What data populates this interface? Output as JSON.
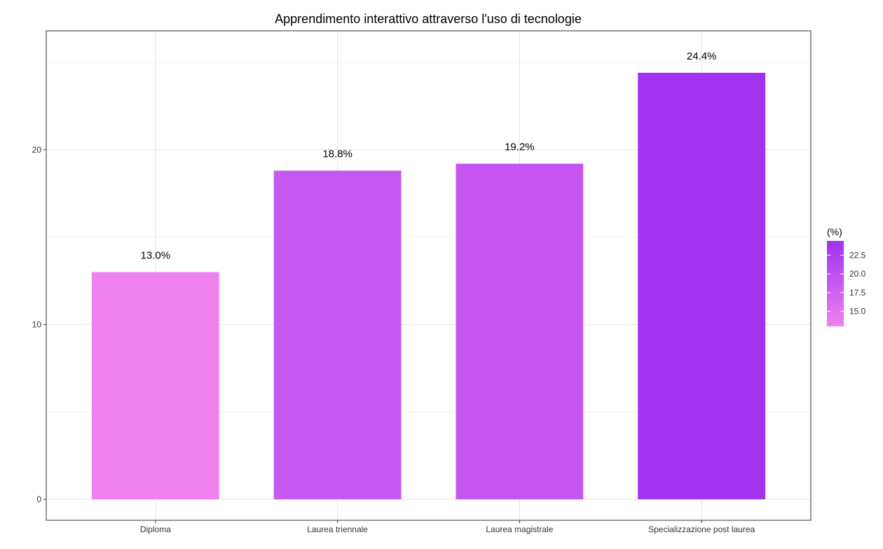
{
  "chart_data": {
    "type": "bar",
    "title": "Apprendimento interattivo attraverso l'uso di tecnologie",
    "xlabel": "",
    "ylabel": "",
    "categories": [
      "Diploma",
      "Laurea triennale",
      "Laurea magistrale",
      "Specializzazione post laurea"
    ],
    "values": [
      13.0,
      18.8,
      19.2,
      24.4
    ],
    "data_labels": [
      "13.0%",
      "18.8%",
      "19.2%",
      "24.4%"
    ],
    "ylim": [
      -1.2,
      26.8
    ],
    "y_ticks": [
      0,
      10,
      20
    ],
    "y_tick_labels": [
      "0",
      "10",
      "20"
    ],
    "grid": true,
    "legend": {
      "title": "(%)",
      "placement": "right",
      "range": [
        13.0,
        24.4
      ],
      "ticks": [
        15.0,
        17.5,
        20.0,
        22.5
      ],
      "tick_labels": [
        "15.0",
        "17.5",
        "20.0",
        "22.5"
      ],
      "color_low": "#ee82ee",
      "color_high": "#a032f0"
    }
  }
}
